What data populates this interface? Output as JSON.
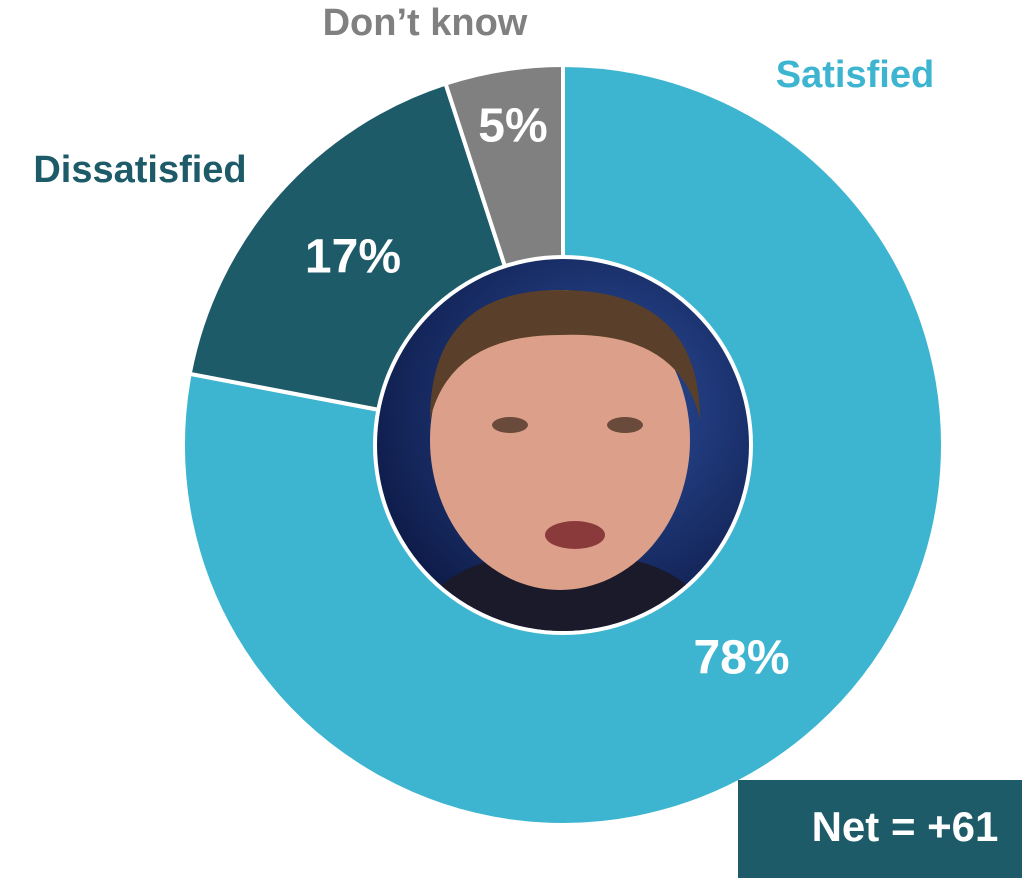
{
  "chart_data": {
    "type": "donut",
    "categories": [
      "Satisfied",
      "Dissatisfied",
      "Don’t know"
    ],
    "values": [
      78,
      17,
      5
    ],
    "value_labels": [
      "78%",
      "17%",
      "5%"
    ],
    "colors": [
      "#3db5d0",
      "#1e5b69",
      "#808080"
    ],
    "annotation": "Net = +61"
  }
}
